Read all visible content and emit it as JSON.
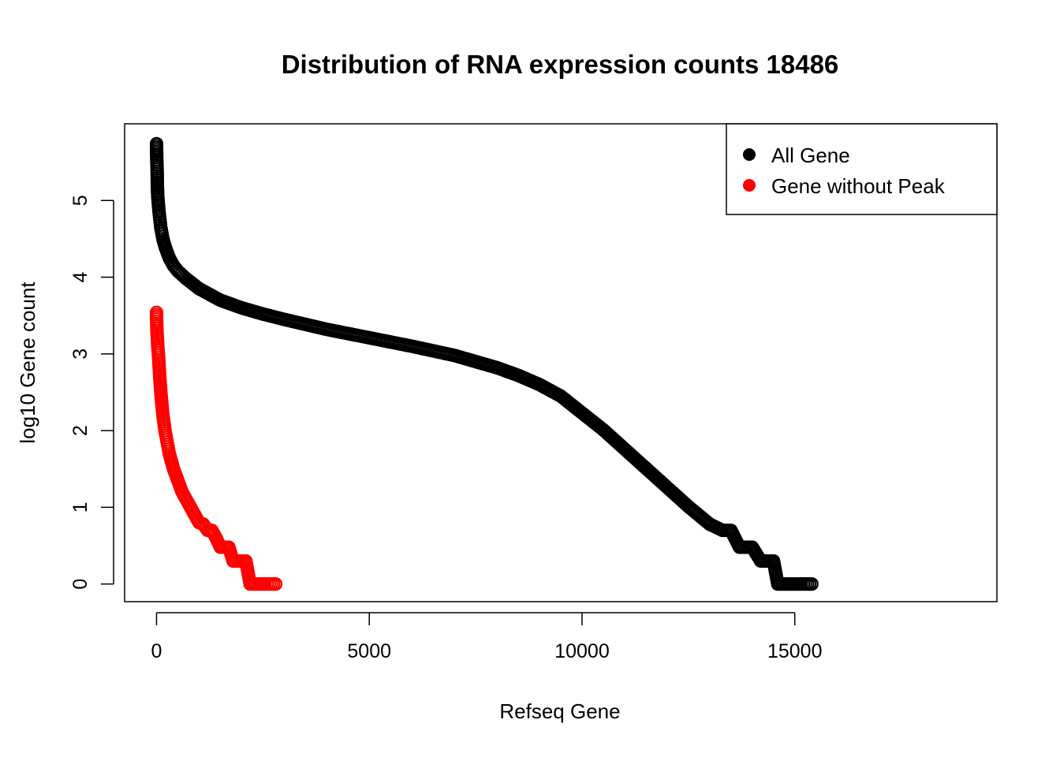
{
  "chart_data": {
    "type": "scatter",
    "title": "Distribution of RNA expression counts 18486",
    "xlabel": "Refseq Gene",
    "ylabel": "log10 Gene count",
    "xlim": [
      -750,
      19750
    ],
    "ylim": [
      -0.23,
      6.0
    ],
    "x_ticks": [
      0,
      5000,
      10000,
      15000
    ],
    "y_ticks": [
      0,
      1,
      2,
      3,
      4,
      5
    ],
    "grid": false,
    "legend": {
      "position": "top-right",
      "entries": [
        {
          "label": "All Gene",
          "color": "#000000"
        },
        {
          "label": "Gene without Peak",
          "color": "#ff0000"
        }
      ]
    },
    "series": [
      {
        "name": "All Gene",
        "color": "#000000",
        "x": [
          0,
          5,
          10,
          15,
          20,
          30,
          40,
          60,
          80,
          100,
          150,
          200,
          300,
          400,
          500,
          700,
          1000,
          1500,
          2000,
          2500,
          3000,
          4000,
          5000,
          6000,
          7000,
          7500,
          8000,
          8500,
          9000,
          9500,
          10000,
          10500,
          11000,
          11500,
          12000,
          12500,
          13000,
          13300,
          13500,
          13700,
          13900,
          14000,
          14200,
          14300,
          14500,
          14600,
          14800,
          15000,
          15200,
          15400
        ],
        "y": [
          5.74,
          5.56,
          5.47,
          5.38,
          5.18,
          5.05,
          4.98,
          4.85,
          4.75,
          4.65,
          4.5,
          4.4,
          4.25,
          4.15,
          4.08,
          3.98,
          3.85,
          3.7,
          3.6,
          3.52,
          3.45,
          3.32,
          3.21,
          3.1,
          2.98,
          2.9,
          2.82,
          2.72,
          2.6,
          2.45,
          2.23,
          2.01,
          1.76,
          1.51,
          1.26,
          1.01,
          0.78,
          0.7,
          0.7,
          0.48,
          0.48,
          0.48,
          0.3,
          0.3,
          0.3,
          0.0,
          0.0,
          0.0,
          0.0,
          0.0
        ]
      },
      {
        "name": "Gene without Peak",
        "color": "#ff0000",
        "x": [
          0,
          5,
          10,
          20,
          30,
          50,
          70,
          100,
          150,
          200,
          250,
          300,
          400,
          500,
          600,
          700,
          800,
          900,
          1000,
          1100,
          1200,
          1300,
          1400,
          1500,
          1600,
          1700,
          1800,
          1900,
          2000,
          2100,
          2200,
          2300,
          2400,
          2500,
          2600,
          2700,
          2800
        ],
        "y": [
          3.54,
          3.4,
          3.3,
          3.2,
          3.1,
          2.95,
          2.75,
          2.5,
          2.2,
          2.0,
          1.85,
          1.7,
          1.5,
          1.35,
          1.2,
          1.1,
          1.0,
          0.9,
          0.8,
          0.78,
          0.7,
          0.7,
          0.6,
          0.48,
          0.48,
          0.48,
          0.3,
          0.3,
          0.3,
          0.3,
          0.0,
          0.0,
          0.0,
          0.0,
          0.0,
          0.0,
          0.0
        ]
      }
    ]
  }
}
